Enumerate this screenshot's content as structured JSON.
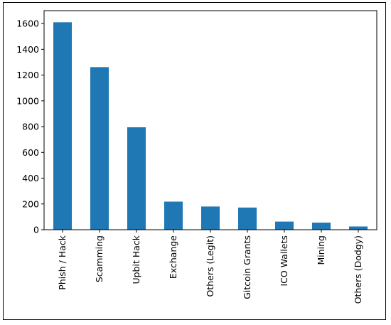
{
  "chart_data": {
    "type": "bar",
    "categories": [
      "Phish / Hack",
      "Scamming",
      "Upbit Hack",
      "Exchange",
      "Others (Legit)",
      "Gitcoin Grants",
      "ICO Wallets",
      "Mining",
      "Others (Dodgy)"
    ],
    "values": [
      1610,
      1262,
      795,
      218,
      180,
      172,
      63,
      55,
      25
    ],
    "title": "",
    "xlabel": "",
    "ylabel": "",
    "ylim": [
      0,
      1700
    ],
    "yticks": [
      0,
      200,
      400,
      600,
      800,
      1000,
      1200,
      1400,
      1600
    ],
    "bar_color": "#1f77b4",
    "grid": false,
    "legend": "none"
  }
}
